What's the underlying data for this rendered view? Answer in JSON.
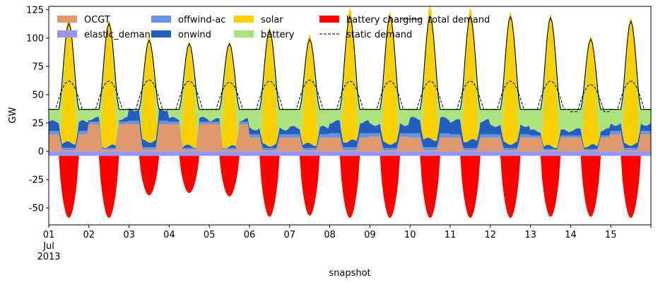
{
  "chart_data": {
    "type": "area",
    "xlabel": "snapshot",
    "ylabel": "GW",
    "ylim": [
      -65,
      128
    ],
    "yticks": [
      -50,
      -25,
      0,
      25,
      50,
      75,
      100,
      125
    ],
    "x_days": 15,
    "x_tick_labels": [
      "01",
      "02",
      "03",
      "04",
      "05",
      "06",
      "07",
      "08",
      "09",
      "10",
      "11",
      "12",
      "13",
      "14",
      "15"
    ],
    "x_tick_sublabels": [
      "Jul",
      "2013"
    ],
    "grid": false,
    "legend_position": "top",
    "colors": {
      "OCGT": "#e0996d",
      "elastic_demand": "#9a95ef",
      "offwind-ac": "#6a93de",
      "onwind": "#235ebf",
      "solar": "#f9d002",
      "battery": "#ace37f",
      "battery charging": "#ff0000",
      "static demand": "#000000",
      "total demand": "#000000"
    },
    "legend": [
      {
        "name": "OCGT",
        "kind": "patch",
        "color": "#e0996d"
      },
      {
        "name": "elastic_demand",
        "kind": "patch",
        "color": "#9a95ef"
      },
      {
        "name": "offwind-ac",
        "kind": "patch",
        "color": "#6a93de"
      },
      {
        "name": "onwind",
        "kind": "patch",
        "color": "#235ebf"
      },
      {
        "name": "solar",
        "kind": "patch",
        "color": "#f9d002"
      },
      {
        "name": "battery",
        "kind": "patch",
        "color": "#ace37f"
      },
      {
        "name": "battery charging",
        "kind": "patch",
        "color": "#ff0000"
      },
      {
        "name": "static demand",
        "kind": "dashed",
        "color": "#000000"
      },
      {
        "name": "total demand",
        "kind": "line",
        "color": "#000000"
      }
    ],
    "daily_total_demand_peak": [
      113,
      113,
      98,
      95,
      95,
      107,
      99,
      119,
      119,
      119,
      119,
      119,
      118,
      99,
      115
    ],
    "daily_solar_peak": [
      112,
      112,
      95,
      92,
      93,
      106,
      97,
      118,
      118,
      118,
      117,
      118,
      117,
      97,
      114
    ],
    "daily_static_demand_peak": [
      62,
      62,
      63,
      62,
      61,
      62,
      63,
      62,
      62,
      62,
      62,
      62,
      62,
      59,
      62
    ],
    "daily_static_demand_trough": [
      37,
      37,
      37,
      37,
      37,
      37,
      37,
      37,
      37,
      37,
      37,
      37,
      37,
      35,
      37
    ],
    "daily_battery_charging_min": [
      -55,
      -55,
      -35,
      -33,
      -36,
      -54,
      -53,
      -55,
      -55,
      -55,
      -55,
      -55,
      -54,
      -54,
      -55
    ],
    "daily_ocgt_night": [
      15,
      24,
      24,
      24,
      24,
      12,
      12,
      12,
      13,
      12,
      12,
      12,
      12,
      12,
      15
    ],
    "daily_onwind_night": [
      8,
      3,
      10,
      3,
      2,
      5,
      6,
      10,
      8,
      13,
      12,
      8,
      4,
      5,
      6
    ],
    "daily_offwind_night": [
      3,
      2,
      3,
      2,
      2,
      3,
      3,
      4,
      3,
      4,
      3,
      3,
      2,
      2,
      3
    ],
    "elastic_demand_level": -4,
    "night_total_demand_base": 37
  }
}
